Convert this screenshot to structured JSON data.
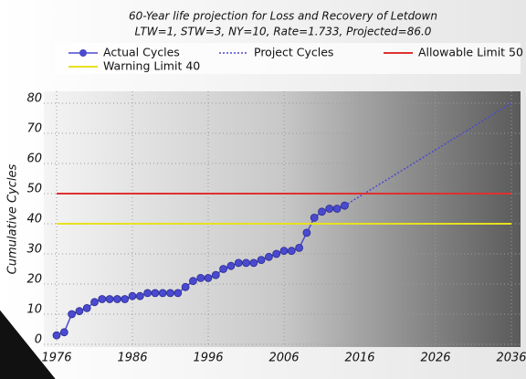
{
  "chart_data": {
    "type": "line",
    "title": "60-Year life projection for Loss and Recovery of Letdown",
    "subtitle": "LTW=1, STW=3, NY=10, Rate=1.733, Projected=86.0",
    "y_label": "Cumulative Cycles",
    "xlim": [
      1976,
      2036
    ],
    "xticks": [
      1976,
      1986,
      1996,
      2006,
      2016,
      2026,
      2036
    ],
    "ylim": [
      0,
      80
    ],
    "yticks": [
      0,
      10,
      20,
      30,
      40,
      50,
      60,
      70,
      80
    ],
    "grid": true,
    "series": [
      {
        "name": "Actual Cycles",
        "color": "#4a4ad0",
        "style": "markers",
        "x": [
          1976,
          1977,
          1978,
          1979,
          1980,
          1981,
          1982,
          1983,
          1984,
          1985,
          1986,
          1987,
          1988,
          1989,
          1990,
          1991,
          1992,
          1993,
          1994,
          1995,
          1996,
          1997,
          1998,
          1999,
          2000,
          2001,
          2002,
          2003,
          2004,
          2005,
          2006,
          2007,
          2008,
          2009,
          2010,
          2011,
          2012,
          2013,
          2014
        ],
        "values": [
          3,
          4,
          10,
          11,
          12,
          14,
          15,
          15,
          15,
          15,
          16,
          16,
          17,
          17,
          17,
          17,
          17,
          19,
          21,
          22,
          22,
          23,
          25,
          26,
          27,
          27,
          27,
          28,
          29,
          30,
          31,
          31,
          32,
          37,
          42,
          44,
          45,
          45,
          46
        ]
      },
      {
        "name": "Project Cycles",
        "color": "#4a4ad0",
        "style": "dotted",
        "x": [
          2014,
          2036
        ],
        "values": [
          46,
          80
        ]
      },
      {
        "name": "Allowable Limit 50",
        "color": "#e03030",
        "style": "solid",
        "x": [
          1976,
          2036
        ],
        "values": [
          50,
          50
        ]
      },
      {
        "name": "Warning Limit 40",
        "color": "#e8e020",
        "style": "solid",
        "x": [
          1976,
          2036
        ],
        "values": [
          40,
          40
        ]
      }
    ]
  }
}
